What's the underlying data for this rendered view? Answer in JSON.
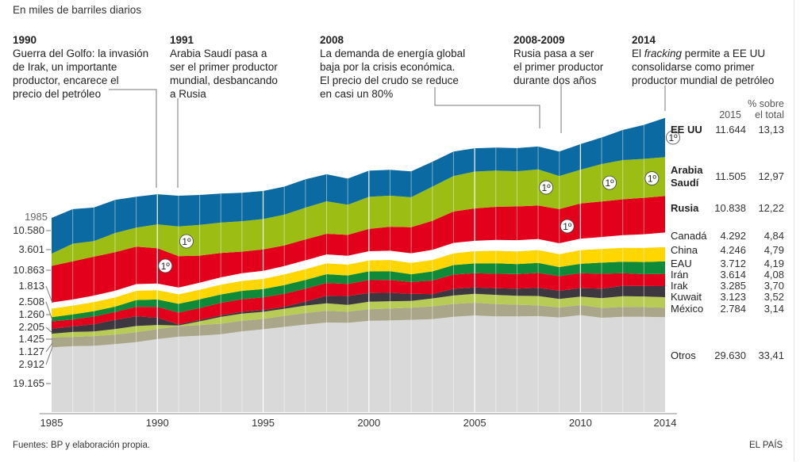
{
  "subtitle": "En miles de barriles diarios",
  "annotations": [
    {
      "year": "1990",
      "lines": [
        "Guerra del Golfo: la invasión",
        "de Irak, un importante",
        "productor, encarece el",
        "precio del petróleo"
      ]
    },
    {
      "year": "1991",
      "lines": [
        "Arabia Saudí pasa a",
        "ser el primer productor",
        "mundial, desbancando",
        "a Rusia"
      ]
    },
    {
      "year": "2008",
      "lines": [
        "La demanda de energía global",
        "baja por la crisis económica.",
        "El precio del crudo se reduce",
        "en casi un 80%"
      ]
    },
    {
      "year": "2008-2009",
      "lines": [
        "Rusia pasa a ser",
        "el primer productor",
        "durante dos años"
      ]
    },
    {
      "year": "2014",
      "lines_html": [
        "El <i>fracking</i> permite a EE UU",
        "consolidarse como primer",
        "productor mundial de petróleo"
      ]
    }
  ],
  "left_axis": {
    "year_label": "1985",
    "values_1985": [
      "10.580",
      "3.601",
      "10.863",
      "1.813",
      "2.508",
      "1.260",
      "2.205",
      "1.425",
      "1.127",
      "2.912",
      "19.165"
    ]
  },
  "right_table": {
    "col_year": "2015",
    "col_pct_1": "% sobre",
    "col_pct_2": "el total",
    "rows": [
      {
        "name": "EE UU",
        "value": "11.644",
        "pct": "13,13",
        "bold": true
      },
      {
        "name_1": "Arabia",
        "name_2": "Saudí",
        "name": "Arabia Saudí",
        "value": "11.505",
        "pct": "12,97",
        "bold": true
      },
      {
        "name": "Rusia",
        "value": "10.838",
        "pct": "12,22",
        "bold": true
      },
      {
        "name": "Canadá",
        "value": "4.292",
        "pct": "4,84"
      },
      {
        "name": "China",
        "value": "4.246",
        "pct": "4,79"
      },
      {
        "name": "EAU",
        "value": "3.712",
        "pct": "4,19"
      },
      {
        "name": "Irán",
        "value": "3.614",
        "pct": "4,08"
      },
      {
        "name": "Irak",
        "value": "3.285",
        "pct": "3,70"
      },
      {
        "name": "Kuwait",
        "value": "3.123",
        "pct": "3,52"
      },
      {
        "name": "México",
        "value": "2.784",
        "pct": "3,14"
      },
      {
        "name": "Otros",
        "value": "29.630",
        "pct": "33,41"
      }
    ]
  },
  "first_place_marker": "1º",
  "footer": {
    "source": "Fuentes: BP y elaboración propia.",
    "brand": "EL PAÍS"
  },
  "chart_data": {
    "type": "area",
    "stacked": true,
    "title": "",
    "subtitle": "En miles de barriles diarios",
    "xlabel": "",
    "ylabel": "En miles de barriles diarios",
    "x": [
      1985,
      1986,
      1987,
      1988,
      1989,
      1990,
      1991,
      1992,
      1993,
      1994,
      1995,
      1996,
      1997,
      1998,
      1999,
      2000,
      2001,
      2002,
      2003,
      2004,
      2005,
      2006,
      2007,
      2008,
      2009,
      2010,
      2011,
      2012,
      2013,
      2014
    ],
    "x_ticks": [
      "1985",
      "1990",
      "1995",
      "2000",
      "2005",
      "2010",
      "2014"
    ],
    "ylim": [
      0,
      90000
    ],
    "grid": "vertical lines at each year",
    "legend": "right (table of 2015 values)",
    "gap_after_series": "Canadá",
    "series": [
      {
        "name": "Otros",
        "color": "#d9d9d9",
        "values": [
          19165,
          19500,
          19600,
          20100,
          20700,
          21600,
          22300,
          22600,
          23000,
          23900,
          24500,
          25200,
          25900,
          26500,
          26400,
          27000,
          27100,
          27300,
          27500,
          28200,
          28600,
          28300,
          28300,
          28400,
          28000,
          28700,
          27900,
          28200,
          28200,
          28100
        ]
      },
      {
        "name": "México",
        "color": "#aaa68a",
        "values": [
          2912,
          2760,
          2880,
          2840,
          2910,
          2980,
          3130,
          3150,
          3160,
          3140,
          3070,
          3280,
          3410,
          3500,
          3340,
          3450,
          3560,
          3590,
          3790,
          3820,
          3770,
          3690,
          3480,
          3170,
          2980,
          2960,
          2940,
          2910,
          2880,
          2780
        ]
      },
      {
        "name": "Kuwait",
        "color": "#b8cc55",
        "values": [
          1127,
          1450,
          1400,
          1650,
          1850,
          1200,
          200,
          1100,
          2000,
          2100,
          2100,
          2100,
          2200,
          2200,
          2000,
          2200,
          2150,
          1990,
          2330,
          2480,
          2620,
          2690,
          2640,
          2780,
          2500,
          2530,
          2880,
          3170,
          3130,
          3120
        ]
      },
      {
        "name": "Irak",
        "color": "#3d3740",
        "values": [
          1425,
          1700,
          2100,
          2700,
          2900,
          2150,
          300,
          430,
          450,
          550,
          560,
          600,
          1200,
          2200,
          2600,
          2600,
          2500,
          2100,
          1300,
          2000,
          1900,
          1950,
          2100,
          2400,
          2450,
          2500,
          2800,
          3100,
          3100,
          3300
        ]
      },
      {
        "name": "Irán",
        "color": "#e2001a",
        "values": [
          2205,
          2000,
          2300,
          2300,
          2800,
          3200,
          3500,
          3500,
          3700,
          3700,
          3700,
          3800,
          3800,
          3800,
          3600,
          3800,
          3800,
          3500,
          4000,
          4200,
          4200,
          4300,
          4300,
          4400,
          4300,
          4400,
          4400,
          3700,
          3500,
          3600
        ]
      },
      {
        "name": "EAU",
        "color": "#0f8a38",
        "values": [
          1260,
          1500,
          1600,
          1600,
          2000,
          2200,
          2600,
          2600,
          2500,
          2500,
          2500,
          2600,
          2600,
          2600,
          2500,
          2600,
          2600,
          2300,
          2700,
          2800,
          2900,
          3100,
          3000,
          3000,
          2700,
          2800,
          3300,
          3400,
          3600,
          3700
        ]
      },
      {
        "name": "China",
        "color": "#ffd600",
        "values": [
          2508,
          2620,
          2690,
          2730,
          2750,
          2770,
          2830,
          2840,
          2890,
          2930,
          2990,
          3170,
          3210,
          3210,
          3210,
          3250,
          3310,
          3350,
          3400,
          3480,
          3640,
          3710,
          3740,
          3810,
          3800,
          4080,
          4070,
          4160,
          4210,
          4250
        ]
      },
      {
        "name": "Canadá",
        "color": "#ffffff",
        "values": [
          1813,
          1800,
          1910,
          1990,
          1960,
          1970,
          1980,
          2070,
          2180,
          2280,
          2400,
          2480,
          2590,
          2670,
          2600,
          2700,
          2730,
          2860,
          3000,
          3080,
          3040,
          3210,
          3310,
          3260,
          3230,
          3370,
          3520,
          3740,
          4000,
          4290
        ]
      },
      {
        "name": "Rusia",
        "color": "#e2001a",
        "values": [
          10863,
          11300,
          11500,
          11400,
          11100,
          10400,
          9300,
          8000,
          7200,
          6400,
          6300,
          6100,
          6200,
          6100,
          6200,
          6600,
          7100,
          7700,
          8600,
          9300,
          9600,
          9800,
          10000,
          9900,
          10100,
          10400,
          10500,
          10600,
          10800,
          10800
        ]
      },
      {
        "name": "Arabia Saudí",
        "color": "#9bbd14",
        "values": [
          3601,
          5200,
          4600,
          5700,
          5600,
          7100,
          8800,
          9100,
          9000,
          9000,
          9000,
          9100,
          9400,
          9600,
          8900,
          9500,
          9200,
          8900,
          10100,
          10500,
          10900,
          10700,
          10400,
          10700,
          9800,
          10000,
          11100,
          11600,
          11500,
          11500
        ]
      },
      {
        "name": "EE UU",
        "color": "#0a6aa1",
        "values": [
          10580,
          10230,
          9940,
          9770,
          9160,
          8910,
          9080,
          8870,
          8580,
          8390,
          8320,
          8290,
          8360,
          8010,
          7730,
          7730,
          7670,
          7630,
          7360,
          7250,
          6900,
          6830,
          6860,
          6780,
          7260,
          7550,
          7860,
          8900,
          10070,
          11640
        ]
      }
    ],
    "first_place": [
      {
        "series": "Rusia",
        "year": 1990
      },
      {
        "series": "Arabia Saudí",
        "year": 1991
      },
      {
        "series": "Arabia Saudí",
        "year": 2008
      },
      {
        "series": "Rusia",
        "year": 2009
      },
      {
        "series": "Arabia Saudí",
        "year": 2011
      },
      {
        "series": "Arabia Saudí",
        "year": 2013
      },
      {
        "series": "EE UU",
        "year": 2014
      }
    ]
  }
}
